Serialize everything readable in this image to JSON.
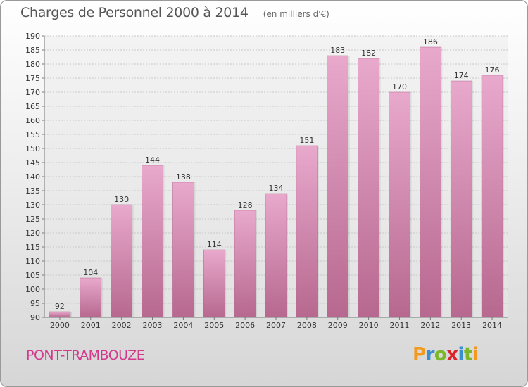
{
  "title": "Charges de Personnel 2000 à 2014",
  "subtitle": "(en milliers d'€)",
  "location": "PONT-TRAMBOUZE",
  "logo": {
    "letters": [
      "P",
      "r",
      "o",
      "x",
      "i",
      "t",
      "i"
    ],
    "colors": [
      "#f39a1e",
      "#3a8fd0",
      "#7ab828",
      "#d9262e",
      "#3a8fd0",
      "#7ab828",
      "#f39a1e"
    ]
  },
  "chart_data": {
    "type": "bar",
    "title": "Charges de Personnel 2000 à 2014",
    "subtitle": "(en milliers d'€)",
    "categories": [
      "2000",
      "2001",
      "2002",
      "2003",
      "2004",
      "2005",
      "2006",
      "2007",
      "2008",
      "2009",
      "2010",
      "2011",
      "2012",
      "2013",
      "2014"
    ],
    "values": [
      92,
      104,
      130,
      144,
      138,
      114,
      128,
      134,
      151,
      183,
      182,
      170,
      186,
      174,
      176
    ],
    "ylim": [
      90,
      190
    ],
    "yticks": [
      90,
      95,
      100,
      105,
      110,
      115,
      120,
      125,
      130,
      135,
      140,
      145,
      150,
      155,
      160,
      165,
      170,
      175,
      180,
      185,
      190
    ],
    "grid": true,
    "bar_color": "#d98fb6"
  }
}
